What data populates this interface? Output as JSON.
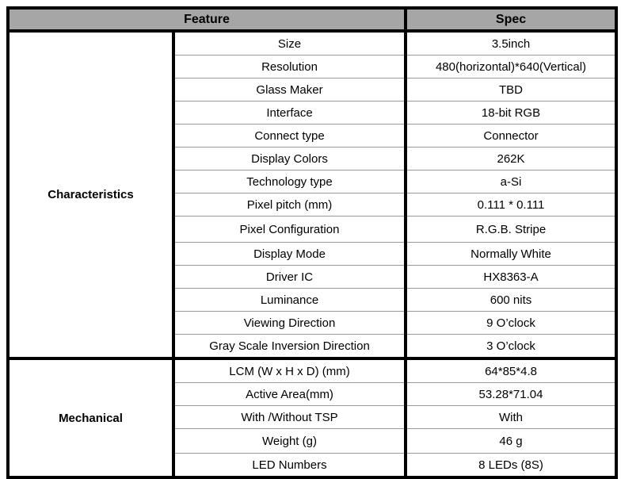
{
  "table": {
    "header": {
      "feature_label": "Feature",
      "spec_label": "Spec"
    },
    "colors": {
      "header_bg": "#a6a6a6",
      "border_dark": "#000000",
      "row_line": "#999999"
    },
    "sections": [
      {
        "category": "Characteristics",
        "rows": [
          {
            "feature": "Size",
            "spec": "3.5inch"
          },
          {
            "feature": "Resolution",
            "spec": "480(horizontal)*640(Vertical)"
          },
          {
            "feature": "Glass Maker",
            "spec": "TBD"
          },
          {
            "feature": "Interface",
            "spec": "18-bit RGB"
          },
          {
            "feature": "Connect type",
            "spec": "Connector"
          },
          {
            "feature": "Display Colors",
            "spec": "262K"
          },
          {
            "feature": "Technology type",
            "spec": "a-Si"
          },
          {
            "feature": "Pixel pitch (mm)",
            "spec": "0.111 * 0.111"
          },
          {
            "feature": "Pixel Configuration",
            "spec": "R.G.B. Stripe"
          },
          {
            "feature": "Display Mode",
            "spec": "Normally White"
          },
          {
            "feature": "Driver IC",
            "spec": "HX8363-A"
          },
          {
            "feature": "Luminance",
            "spec": "600 nits"
          },
          {
            "feature": "Viewing Direction",
            "spec": "9 O’clock"
          },
          {
            "feature": "Gray Scale Inversion Direction",
            "spec": "3 O’clock"
          }
        ]
      },
      {
        "category": "Mechanical",
        "rows": [
          {
            "feature": "LCM (W x H x D) (mm)",
            "spec": "64*85*4.8"
          },
          {
            "feature": "Active Area(mm)",
            "spec": "53.28*71.04"
          },
          {
            "feature": "With /Without TSP",
            "spec": "With"
          },
          {
            "feature": "Weight (g)",
            "spec": "46 g"
          },
          {
            "feature": "LED Numbers",
            "spec": "8 LEDs (8S)"
          }
        ]
      }
    ]
  }
}
